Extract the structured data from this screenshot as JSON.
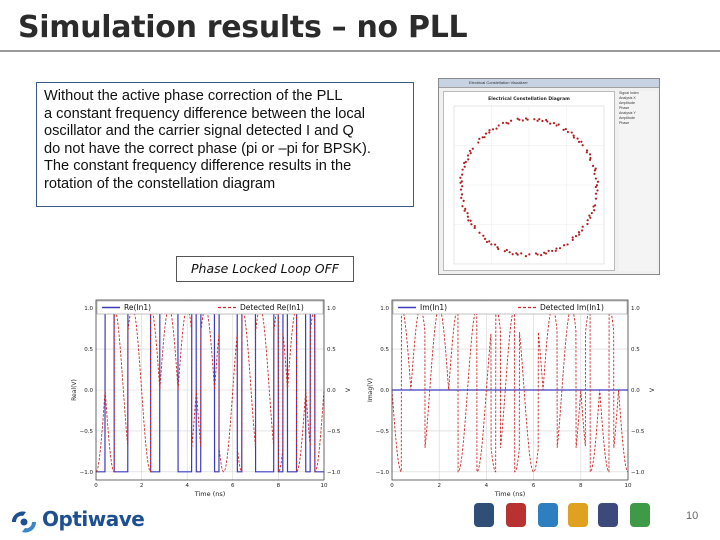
{
  "title": "Simulation results – no PLL",
  "description_lines": [
    "Without the active phase correction of the PLL",
    "a constant frequency difference between the local",
    "oscillator and the carrier signal detected I and Q",
    "do not have the correct phase (pi or –pi for BPSK).",
    "The constant frequency difference results in the",
    "rotation of the constellation diagram"
  ],
  "pll_label": "Phase Locked Loop OFF",
  "constellation_window": {
    "window_title": "Electrical Constellation Visualizer",
    "plot_title": "Electrical Constellation Diagram",
    "panel_labels": [
      "Signal Index",
      "Analysis X",
      "Amplitude",
      "Phase",
      "Analysis Y",
      "Amplitude",
      "Phase"
    ]
  },
  "page_number": "10",
  "logo_text": "Optiwave",
  "colors": {
    "blue": "#3a3ac0",
    "red": "#cc2a2a",
    "accent": "#1d4f91"
  },
  "chart_data": [
    {
      "type": "line",
      "legend": [
        "Re(In1)",
        "Detected Re(In1)"
      ],
      "xlabel": "Time (ns)",
      "ylabel": "Real(V)",
      "ylabel_right": "V",
      "x_ticks": [
        "0",
        "2",
        "4",
        "6",
        "8",
        "10"
      ],
      "y_ticks": [
        "1.0",
        "0.5",
        "0.0",
        "−0.5",
        "−1.0"
      ],
      "xlim": [
        0,
        10
      ],
      "ylim": [
        -1.1,
        1.1
      ],
      "series": [
        {
          "name": "Re(In1)",
          "color": "#3a3ac0",
          "style": "solid",
          "shape": "bpsk_square",
          "bits_per_ns": 5
        },
        {
          "name": "Detected Re(In1)",
          "color": "#cc2a2a",
          "style": "dashed",
          "shape": "rotating_cos",
          "beat_period_ns": 1.6
        }
      ]
    },
    {
      "type": "line",
      "legend": [
        "Im(In1)",
        "Detected Im(In1)"
      ],
      "xlabel": "Time (ns)",
      "ylabel": "Imag(V)",
      "ylabel_right": "V",
      "x_ticks": [
        "0",
        "2",
        "4",
        "6",
        "8",
        "10"
      ],
      "y_ticks": [
        "1.0",
        "0.5",
        "0.0",
        "−0.5",
        "−1.0"
      ],
      "xlim": [
        0,
        10
      ],
      "ylim": [
        -1.1,
        1.1
      ],
      "series": [
        {
          "name": "Im(In1)",
          "color": "#3a3ac0",
          "style": "solid",
          "shape": "zero",
          "bits_per_ns": 5
        },
        {
          "name": "Detected Im(In1)",
          "color": "#cc2a2a",
          "style": "dashed",
          "shape": "rotating_sin",
          "beat_period_ns": 1.6
        }
      ]
    }
  ]
}
